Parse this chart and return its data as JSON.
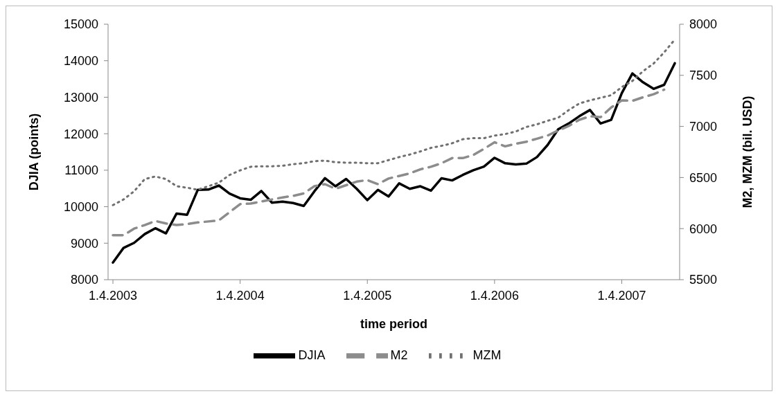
{
  "chart_data": {
    "type": "line",
    "xlabel": "time period",
    "ylabel": "DJIA (points)",
    "y2label": "M2, MZM (bil. USD)",
    "categories": [
      "1.4.2003",
      null,
      null,
      null,
      null,
      null,
      null,
      null,
      null,
      null,
      null,
      null,
      "1.4.2004",
      null,
      null,
      null,
      null,
      null,
      null,
      null,
      null,
      null,
      null,
      null,
      "1.4.2005",
      null,
      null,
      null,
      null,
      null,
      null,
      null,
      null,
      null,
      null,
      null,
      "1.4.2006",
      null,
      null,
      null,
      null,
      null,
      null,
      null,
      null,
      null,
      null,
      null,
      "1.4.2007",
      null,
      null,
      null,
      null,
      null
    ],
    "series": [
      {
        "name": "DJIA",
        "color": "#000000",
        "line_style": "solid",
        "values": [
          8470,
          8870,
          9010,
          9250,
          9410,
          9270,
          9810,
          9780,
          10460,
          10470,
          10580,
          10360,
          10230,
          10190,
          10430,
          10110,
          10140,
          10100,
          10020,
          10420,
          10780,
          10560,
          10760,
          10490,
          10180,
          10460,
          10280,
          10640,
          10490,
          10560,
          10440,
          10780,
          10720,
          10870,
          11000,
          11100,
          11340,
          11190,
          11160,
          11180,
          11360,
          11690,
          12120,
          12280,
          12480,
          12650,
          12280,
          12380,
          13110,
          13650,
          13410,
          13230,
          13340,
          13930
        ]
      },
      {
        "name": "M2",
        "color": "#8c8c8c",
        "axis": "y2",
        "line_style": "dashed",
        "values": [
          5935,
          5935,
          6000,
          6035,
          6075,
          6050,
          6035,
          6045,
          6060,
          6070,
          6080,
          6160,
          6240,
          6245,
          6265,
          6285,
          6305,
          6320,
          6345,
          6415,
          6435,
          6390,
          6425,
          6460,
          6475,
          6435,
          6490,
          6515,
          6540,
          6580,
          6605,
          6640,
          6690,
          6690,
          6720,
          6780,
          6845,
          6805,
          6830,
          6850,
          6880,
          6910,
          6960,
          7005,
          7065,
          7100,
          7090,
          7185,
          7255,
          7250,
          7285,
          7315,
          7360,
          null
        ]
      },
      {
        "name": "MZM",
        "color": "#707070",
        "axis": "y2",
        "line_style": "dotted",
        "values": [
          6230,
          6285,
          6365,
          6485,
          6510,
          6485,
          6415,
          6400,
          6380,
          6415,
          6450,
          6525,
          6570,
          6605,
          6610,
          6610,
          6615,
          6630,
          6640,
          6660,
          6665,
          6650,
          6645,
          6645,
          6640,
          6640,
          6670,
          6700,
          6725,
          6755,
          6790,
          6810,
          6835,
          6875,
          6885,
          6885,
          6910,
          6925,
          6950,
          6995,
          7020,
          7055,
          7085,
          7160,
          7225,
          7255,
          7280,
          7305,
          7385,
          7445,
          7540,
          7615,
          7725,
          7850
        ]
      }
    ],
    "ylim": [
      8000,
      15000
    ],
    "yticks": [
      8000,
      9000,
      10000,
      11000,
      12000,
      13000,
      14000,
      15000
    ],
    "y2lim": [
      5500,
      8000
    ],
    "y2ticks": [
      5500,
      6000,
      6500,
      7000,
      7500,
      8000
    ],
    "legend": "bottom",
    "marker": "none"
  }
}
